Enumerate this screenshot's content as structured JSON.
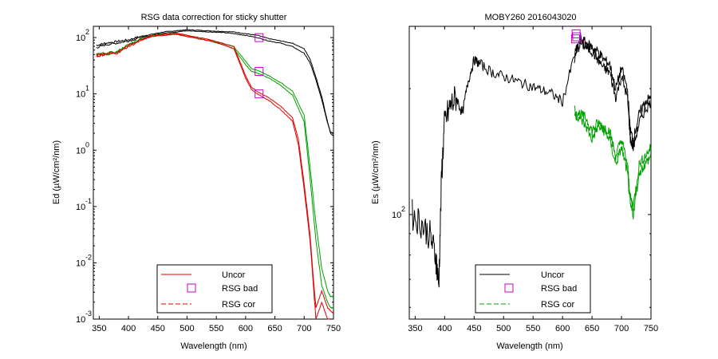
{
  "colors": {
    "uncor_left": "#e00000",
    "uncor_right": "#000000",
    "bad": "#cc00cc",
    "cor": "#00a000",
    "black": "#000000"
  },
  "chart_data": [
    {
      "type": "line",
      "title": "RSG data correction for sticky shutter",
      "xlabel": "Wavelength (nm)",
      "ylabel": "Ed (µW/cm²/nm)",
      "xlim": [
        340,
        750
      ],
      "ylim_log10": [
        -3,
        2.2
      ],
      "y_scale": "log",
      "xticks": [
        350,
        400,
        450,
        500,
        550,
        600,
        650,
        700,
        750
      ],
      "yticks": [
        {
          "exp": "2",
          "v": 2
        },
        {
          "exp": "1",
          "v": 1
        },
        {
          "exp": "0",
          "v": 0
        },
        {
          "exp": "-1",
          "v": -1
        },
        {
          "exp": "-2",
          "v": -2
        },
        {
          "exp": "-3",
          "v": -3
        }
      ],
      "legend": {
        "placement": "bottom-center",
        "entries": [
          {
            "label": "Uncor",
            "style": "solid",
            "color": "#e00000"
          },
          {
            "label": "RSG bad",
            "style": "marker",
            "color": "#cc00cc"
          },
          {
            "label": "RSG cor",
            "style": "dashed",
            "color": "#e00000"
          }
        ]
      },
      "series": [
        {
          "key": "black_upper",
          "color": "#000000",
          "x": [
            345,
            360,
            380,
            400,
            420,
            440,
            460,
            480,
            500,
            520,
            540,
            560,
            580,
            600,
            620,
            640,
            660,
            680,
            700,
            710,
            720,
            730,
            740,
            745,
            750
          ],
          "logy": [
            1.86,
            1.9,
            1.93,
            1.96,
            2.02,
            2.06,
            2.1,
            2.12,
            2.14,
            2.13,
            2.12,
            2.11,
            2.1,
            2.07,
            2.04,
            1.98,
            1.94,
            1.9,
            1.8,
            1.62,
            1.3,
            0.95,
            0.5,
            0.3,
            0.25
          ]
        },
        {
          "key": "black_lower",
          "color": "#000000",
          "x": [
            345,
            360,
            380,
            400,
            420,
            440,
            460,
            480,
            500,
            520,
            540,
            560,
            580,
            600,
            620,
            640,
            660,
            680,
            700,
            710,
            720,
            730,
            740,
            745,
            750
          ],
          "logy": [
            1.82,
            1.87,
            1.9,
            1.94,
            2.0,
            2.04,
            2.08,
            2.1,
            2.12,
            2.11,
            2.1,
            2.09,
            2.07,
            2.04,
            2.0,
            1.94,
            1.9,
            1.84,
            1.72,
            1.55,
            1.25,
            0.9,
            0.48,
            0.32,
            0.3
          ]
        },
        {
          "key": "green_upper",
          "color": "#00a000",
          "x": [
            345,
            380,
            400,
            420,
            440,
            460,
            480,
            500,
            520,
            540,
            560,
            580,
            600,
            610,
            620,
            640,
            660,
            680,
            700,
            710,
            720,
            730,
            740,
            745,
            750
          ],
          "logy": [
            1.7,
            1.75,
            1.88,
            1.98,
            2.04,
            2.06,
            2.08,
            2.04,
            2.0,
            1.96,
            1.9,
            1.84,
            1.58,
            1.45,
            1.42,
            1.32,
            1.2,
            1.05,
            0.62,
            -0.3,
            -1.3,
            -2.1,
            -2.5,
            -2.6,
            -2.6
          ]
        },
        {
          "key": "green_lower",
          "color": "#00a000",
          "x": [
            345,
            380,
            400,
            420,
            440,
            460,
            480,
            500,
            520,
            540,
            560,
            580,
            600,
            610,
            620,
            640,
            660,
            680,
            700,
            710,
            720,
            730,
            740,
            745,
            750
          ],
          "logy": [
            1.68,
            1.73,
            1.86,
            1.96,
            2.02,
            2.04,
            2.06,
            2.02,
            1.98,
            1.94,
            1.88,
            1.8,
            1.52,
            1.4,
            1.37,
            1.28,
            1.15,
            0.98,
            0.5,
            -0.5,
            -1.6,
            -2.4,
            -2.7,
            -2.8,
            -2.8
          ]
        },
        {
          "key": "red_upper",
          "color": "#e00000",
          "x": [
            345,
            360,
            380,
            400,
            420,
            440,
            460,
            480,
            500,
            520,
            540,
            560,
            580,
            600,
            610,
            620,
            640,
            660,
            680,
            690,
            700,
            710,
            715,
            720,
            730,
            740,
            750
          ],
          "logy": [
            1.7,
            1.72,
            1.74,
            1.86,
            1.96,
            2.04,
            2.06,
            2.08,
            2.04,
            2.0,
            1.96,
            1.9,
            1.84,
            1.32,
            1.12,
            1.04,
            0.93,
            0.78,
            0.58,
            0.2,
            -0.6,
            -1.5,
            -2.2,
            -2.8,
            -2.5,
            -2.8,
            -2.9
          ]
        },
        {
          "key": "red_lower",
          "color": "#e00000",
          "x": [
            345,
            360,
            380,
            400,
            420,
            440,
            460,
            480,
            500,
            520,
            540,
            560,
            580,
            600,
            610,
            620,
            640,
            660,
            680,
            690,
            700,
            710,
            715,
            720,
            730,
            740,
            750
          ],
          "logy": [
            1.66,
            1.7,
            1.72,
            1.84,
            1.94,
            2.02,
            2.04,
            2.06,
            2.02,
            1.98,
            1.94,
            1.88,
            1.8,
            1.28,
            1.08,
            1.0,
            0.88,
            0.72,
            0.52,
            0.1,
            -0.7,
            -1.6,
            -2.3,
            -3.0,
            -2.7,
            -3.0,
            -3.0
          ]
        }
      ],
      "markers": [
        {
          "x": 623,
          "logy": 2.0
        },
        {
          "x": 623,
          "logy": 1.4
        },
        {
          "x": 623,
          "logy": 1.0
        }
      ]
    },
    {
      "type": "line",
      "title": "MOBY260  2016043020",
      "xlabel": "Wavelength (nm)",
      "ylabel": "Es (µW/cm²/nm)",
      "xlim": [
        340,
        750
      ],
      "y_scale": "log",
      "ylim_log10": [
        1.75,
        2.45
      ],
      "xticks": [
        350,
        400,
        450,
        500,
        550,
        600,
        650,
        700,
        750
      ],
      "yticks": [
        {
          "exp": "2",
          "v": 2
        }
      ],
      "legend": {
        "placement": "bottom-center",
        "entries": [
          {
            "label": "Uncor",
            "style": "solid",
            "color": "#000000"
          },
          {
            "label": "RSG bad",
            "style": "marker",
            "color": "#cc00cc"
          },
          {
            "label": "RSG cor",
            "style": "dashed",
            "color": "#00a000"
          }
        ]
      },
      "series": [
        {
          "key": "black_main",
          "color": "#000000",
          "x": [
            345,
            360,
            375,
            385,
            390,
            395,
            400,
            410,
            420,
            430,
            440,
            450,
            460,
            480,
            500,
            520,
            540,
            560,
            580,
            600,
            620,
            630,
            640,
            650,
            660,
            670,
            680,
            690,
            700,
            710,
            715,
            720,
            730,
            740,
            750
          ],
          "logy": [
            2.0,
            1.98,
            1.95,
            1.9,
            1.83,
            2.1,
            2.22,
            2.26,
            2.28,
            2.24,
            2.32,
            2.37,
            2.36,
            2.34,
            2.33,
            2.32,
            2.31,
            2.3,
            2.29,
            2.27,
            2.38,
            2.42,
            2.41,
            2.4,
            2.39,
            2.37,
            2.36,
            2.3,
            2.35,
            2.3,
            2.2,
            2.18,
            2.24,
            2.27,
            2.28
          ]
        },
        {
          "key": "black_alt",
          "color": "#000000",
          "x": [
            620,
            630,
            640,
            650,
            660,
            670,
            680,
            690,
            700,
            710,
            715,
            720,
            730,
            740,
            750
          ],
          "logy": [
            2.37,
            2.41,
            2.4,
            2.39,
            2.37,
            2.35,
            2.34,
            2.28,
            2.33,
            2.28,
            2.18,
            2.16,
            2.22,
            2.25,
            2.27
          ]
        },
        {
          "key": "green_upper",
          "color": "#00a000",
          "x": [
            620,
            630,
            640,
            650,
            660,
            670,
            680,
            690,
            700,
            710,
            715,
            720,
            730,
            740,
            750
          ],
          "logy": [
            2.25,
            2.24,
            2.23,
            2.2,
            2.22,
            2.21,
            2.2,
            2.14,
            2.18,
            2.12,
            2.04,
            2.02,
            2.12,
            2.14,
            2.16
          ]
        },
        {
          "key": "green_lower",
          "color": "#00a000",
          "x": [
            620,
            630,
            640,
            650,
            660,
            670,
            680,
            690,
            700,
            710,
            715,
            720,
            730,
            740,
            750
          ],
          "logy": [
            2.24,
            2.23,
            2.21,
            2.18,
            2.21,
            2.2,
            2.18,
            2.12,
            2.16,
            2.1,
            2.02,
            2.0,
            2.1,
            2.12,
            2.14
          ]
        }
      ],
      "markers": [
        {
          "x": 622,
          "logy": 2.42
        },
        {
          "x": 624,
          "logy": 2.425
        },
        {
          "x": 623,
          "logy": 2.432
        }
      ]
    }
  ]
}
